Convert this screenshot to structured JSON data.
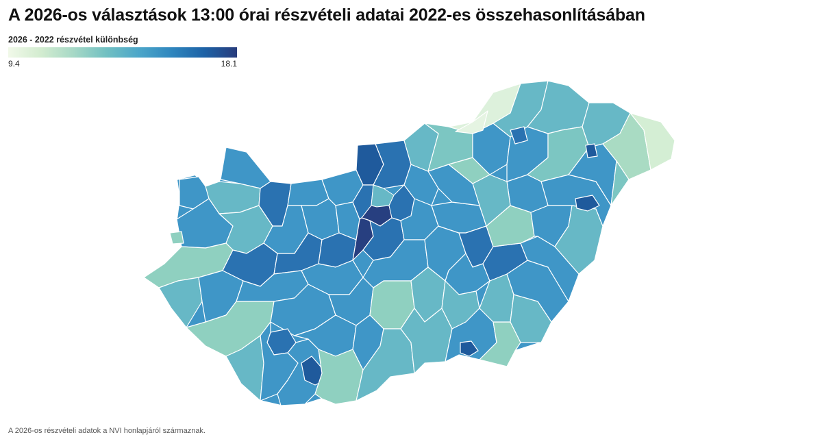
{
  "title": "A 2026-os választások 13:00 órai részvételi adatai 2022-es összehasonlításában",
  "legend": {
    "label": "2026 - 2022 részvétel különbség",
    "min": "9.4",
    "max": "18.1",
    "colors": [
      "#f1f9e9",
      "#d3ecd0",
      "#a6d8c6",
      "#71c0c2",
      "#4ca6c9",
      "#2f86be",
      "#1d62a6",
      "#283c7c"
    ]
  },
  "map": {
    "region_colors": {
      "nw_hills": "#3a8fc4",
      "pale_green": "#e5f4e2",
      "north_light": "#ddf1dc",
      "teal_light": "#7cc6c2",
      "teal_mid": "#67b8c6",
      "teal_pale": "#8fd0c0",
      "blue_mid": "#3f96c7",
      "blue_deep": "#2a72b1",
      "blue_dark": "#1f5a9c",
      "navy": "#273f80",
      "ne_green": "#a9dbc3",
      "ne_pale": "#d4eed4"
    }
  },
  "footnote": "A 2026-os részvételi adatok a NVI honlapjáról származnak."
}
